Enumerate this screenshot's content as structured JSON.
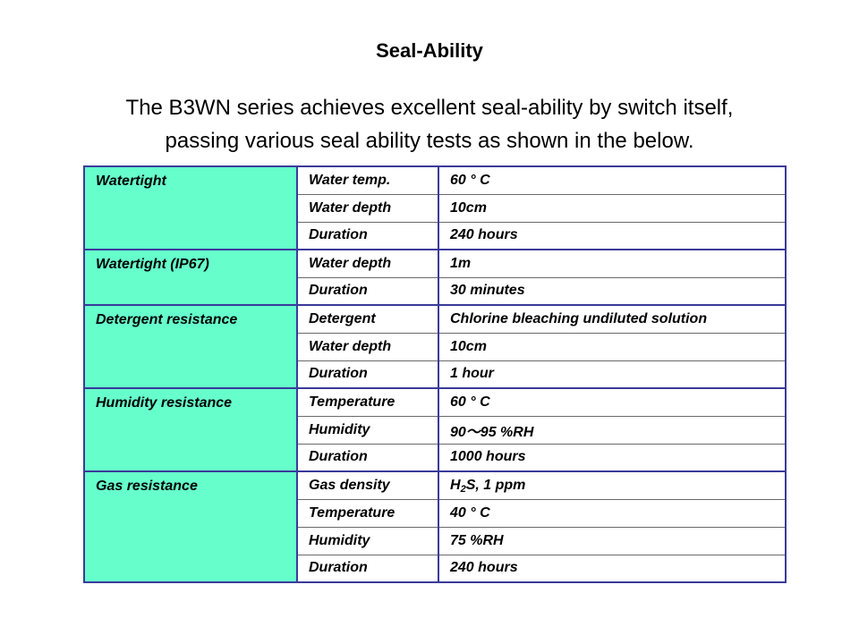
{
  "title": "Seal-Ability",
  "intro": {
    "line1": "The B3WN series achieves excellent seal-ability by switch itself,",
    "line2": "passing various seal ability tests as shown in the below."
  },
  "table": {
    "groups": [
      {
        "category": "Watertight",
        "rows": [
          {
            "param": "Water temp.",
            "value": "60 ° C"
          },
          {
            "param": "Water depth",
            "value": "10cm"
          },
          {
            "param": "Duration",
            "value": "240 hours"
          }
        ]
      },
      {
        "category": "Watertight (IP67)",
        "rows": [
          {
            "param": "Water depth",
            "value": "1m"
          },
          {
            "param": "Duration",
            "value": "30 minutes"
          }
        ]
      },
      {
        "category": "Detergent resistance",
        "rows": [
          {
            "param": "Detergent",
            "value": "Chlorine bleaching undiluted solution"
          },
          {
            "param": "Water depth",
            "value": "10cm"
          },
          {
            "param": "Duration",
            "value": "1 hour"
          }
        ]
      },
      {
        "category": "Humidity resistance",
        "rows": [
          {
            "param": "Temperature",
            "value": "60 ° C"
          },
          {
            "param": "Humidity",
            "value": "90～95 %RH"
          },
          {
            "param": "Duration",
            "value": "1000 hours"
          }
        ]
      },
      {
        "category": "Gas resistance",
        "rows": [
          {
            "param": "Gas density",
            "value_prefix": "H",
            "value_sub": "2",
            "value_suffix": "S, 1 ppm"
          },
          {
            "param": "Temperature",
            "value": "40 ° C"
          },
          {
            "param": "Humidity",
            "value": "75 %RH"
          },
          {
            "param": "Duration",
            "value": "240 hours"
          }
        ]
      }
    ]
  }
}
